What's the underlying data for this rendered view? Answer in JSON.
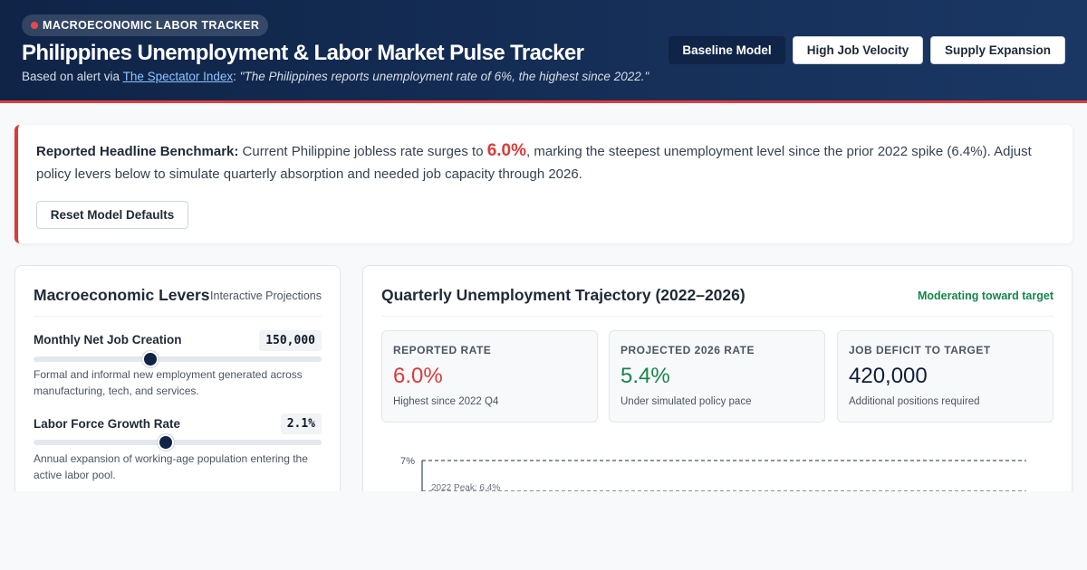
{
  "header": {
    "badge": "MACROECONOMIC LABOR TRACKER",
    "title": "Philippines Unemployment & Labor Market Pulse Tracker",
    "subtitle_prefix": "Based on alert via ",
    "source_link": "The Spectator Index",
    "subtitle_colon": ": ",
    "quote": "\"The Philippines reports unemployment rate of 6%, the highest since 2022.\"",
    "scenarios": [
      {
        "label": "Baseline Model",
        "active": true
      },
      {
        "label": "High Job Velocity",
        "active": false
      },
      {
        "label": "Supply Expansion",
        "active": false
      }
    ]
  },
  "alert": {
    "lead": "Reported Headline Benchmark:",
    "text_before": " Current Philippine jobless rate surges to ",
    "highlight": "6.0%",
    "text_after": ", marking the steepest unemployment level since the prior 2022 spike (6.4%). Adjust policy levers below to simulate quarterly absorption and needed job capacity through 2026.",
    "reset_label": "Reset Model Defaults"
  },
  "levers": {
    "title": "Macroeconomic Levers",
    "tag": "Interactive Projections",
    "items": [
      {
        "label": "Monthly Net Job Creation",
        "value": "150,000",
        "position": 0.406,
        "desc": "Formal and informal new employment generated across manufacturing, tech, and services."
      },
      {
        "label": "Labor Force Growth Rate",
        "value": "2.1%",
        "position": 0.459,
        "desc": "Annual expansion of working-age population entering the active labor pool."
      }
    ]
  },
  "trajectory": {
    "title": "Quarterly Unemployment Trajectory (2022–2026)",
    "status": "Moderating toward target",
    "kpis": [
      {
        "label": "REPORTED RATE",
        "value": "6.0%",
        "note": "Highest since 2022 Q4",
        "color": "#d93b3b"
      },
      {
        "label": "PROJECTED 2026 RATE",
        "value": "5.4%",
        "note": "Under simulated policy pace",
        "color": "#16864a"
      },
      {
        "label": "JOB DEFICIT TO TARGET",
        "value": "420,000",
        "note": "Additional positions required",
        "color": "#0f1f3a"
      }
    ]
  },
  "chart_data": {
    "type": "line",
    "title": "",
    "xlabel": "",
    "ylabel": "",
    "y_ticks": [
      "7%"
    ],
    "reference_lines": [
      {
        "label": "",
        "value": 7.0
      },
      {
        "label": "2022 Peak: 6.4%",
        "value": 6.4
      }
    ],
    "series": []
  }
}
